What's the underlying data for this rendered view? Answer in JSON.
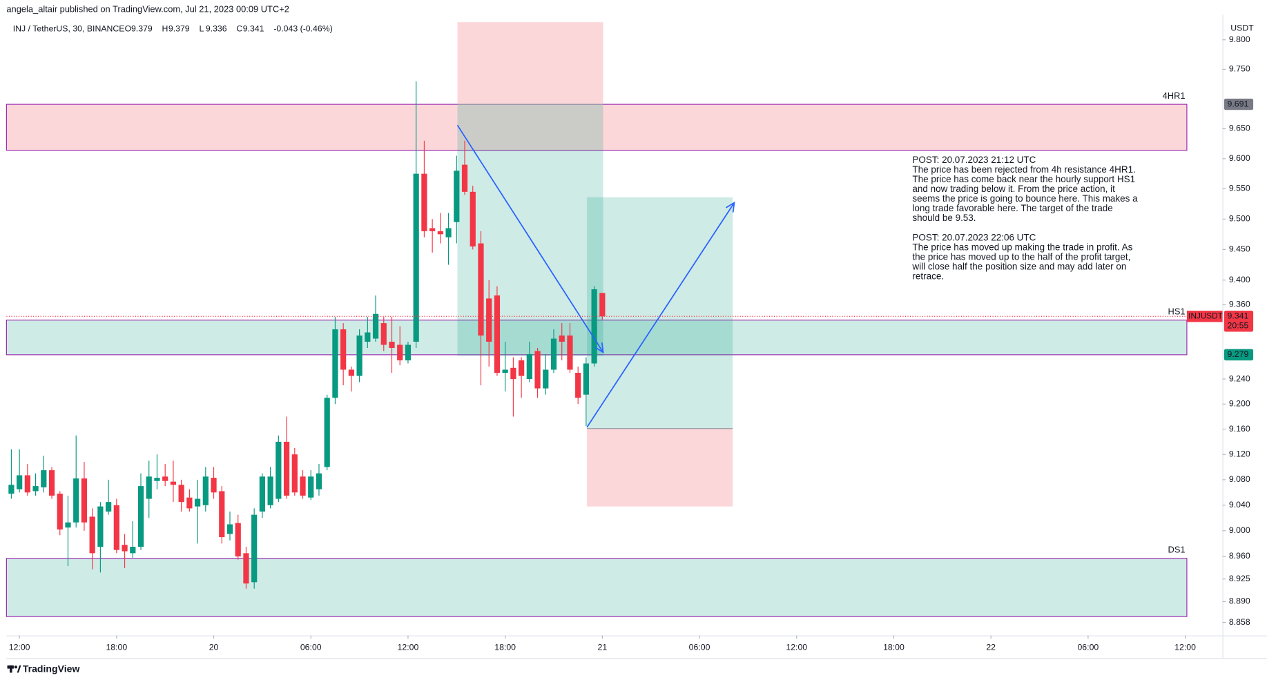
{
  "header": "angela_altair published on TradingView.com, Jul 21, 2023 00:09 UTC+2",
  "footer": "TradingView",
  "chart_data": {
    "type": "candlestick",
    "symbol": "INJ / TetherUS, 30, BINANCE",
    "ohlc_keys": [
      "O",
      "H",
      "L",
      "C"
    ],
    "change": "-0.043 (-0.46%)",
    "currency": "USDT",
    "last_price_symbol": "INJUSDT",
    "countdown": "20:55",
    "up_color": "#089981",
    "down_color": "#f23645",
    "log_scale": true,
    "grid": false,
    "x": [
      -1,
      0,
      1,
      2,
      3,
      4,
      5,
      6,
      7,
      8,
      9,
      10,
      11,
      12,
      13,
      14,
      15,
      16,
      17,
      18,
      19,
      20,
      21,
      22,
      23,
      24,
      25,
      26,
      27,
      28,
      29,
      30,
      31,
      32,
      33,
      34,
      35,
      36,
      37,
      38,
      39,
      40,
      41,
      42,
      43,
      44,
      45,
      46,
      47,
      48,
      49,
      50,
      51,
      52,
      53,
      54,
      55,
      56,
      57,
      58,
      59,
      60,
      61,
      62,
      63,
      64,
      65,
      66,
      67,
      68,
      69,
      70,
      71,
      72
    ],
    "open": [
      9.058,
      9.065,
      9.087,
      9.062,
      9.068,
      9.095,
      9.058,
      9.005,
      9.013,
      9.082,
      9.022,
      8.975,
      9.03,
      9.04,
      8.978,
      8.965,
      8.975,
      9.05,
      9.078,
      9.085,
      9.077,
      9.072,
      9.052,
      9.038,
      9.04,
      9.083,
      9.062,
      8.995,
      9.012,
      8.965,
      8.92,
      9.03,
      9.04,
      9.05,
      9.14,
      9.12,
      9.085,
      9.052,
      9.065,
      9.1,
      9.21,
      9.32,
      9.255,
      9.245,
      9.3,
      9.305,
      9.33,
      9.3,
      9.295,
      9.27,
      9.3,
      9.575,
      9.485,
      9.48,
      9.47,
      9.495,
      9.59,
      9.545,
      9.46,
      9.37,
      9.375,
      9.25,
      9.258,
      9.27,
      9.24,
      9.285,
      9.225,
      9.255,
      9.31,
      9.31,
      9.25,
      9.215,
      9.265,
      9.379
    ],
    "high": [
      9.128,
      9.128,
      9.105,
      9.09,
      9.118,
      9.1,
      9.062,
      9.055,
      9.15,
      9.108,
      9.035,
      9.045,
      9.08,
      9.05,
      8.995,
      9.015,
      9.09,
      9.11,
      9.12,
      9.105,
      9.11,
      9.08,
      9.065,
      9.08,
      9.1,
      9.1,
      9.07,
      9.03,
      9.025,
      8.975,
      9.035,
      9.09,
      9.1,
      9.15,
      9.18,
      9.13,
      9.095,
      9.095,
      9.105,
      9.215,
      9.34,
      9.33,
      9.26,
      9.32,
      9.34,
      9.375,
      9.34,
      9.34,
      9.325,
      9.3,
      9.73,
      9.63,
      9.5,
      9.51,
      9.51,
      9.605,
      9.63,
      9.555,
      9.48,
      9.4,
      9.39,
      9.3,
      9.275,
      9.275,
      9.3,
      9.29,
      9.28,
      9.32,
      9.33,
      9.33,
      9.26,
      9.275,
      9.39,
      9.379
    ],
    "low": [
      9.05,
      9.06,
      9.055,
      9.055,
      9.06,
      9.05,
      8.993,
      8.945,
      9.005,
      9.0,
      8.94,
      8.935,
      9.025,
      8.965,
      8.942,
      8.958,
      8.97,
      9.02,
      9.065,
      9.07,
      9.045,
      9.03,
      9.03,
      8.98,
      9.03,
      9.05,
      8.98,
      8.985,
      8.955,
      8.91,
      8.91,
      9.02,
      9.035,
      9.045,
      9.05,
      9.055,
      9.05,
      9.048,
      9.055,
      9.095,
      9.2,
      9.23,
      9.22,
      9.235,
      9.29,
      9.3,
      9.285,
      9.25,
      9.262,
      9.265,
      9.29,
      9.47,
      9.445,
      9.46,
      9.425,
      9.46,
      9.54,
      9.45,
      9.23,
      9.26,
      9.245,
      9.22,
      9.18,
      9.21,
      9.235,
      9.21,
      9.215,
      9.25,
      9.27,
      9.25,
      9.2,
      9.165,
      9.26,
      9.336
    ],
    "close": [
      9.072,
      9.087,
      9.06,
      9.07,
      9.095,
      9.055,
      9.002,
      9.013,
      9.082,
      9.013,
      8.965,
      9.038,
      9.045,
      8.97,
      8.968,
      8.975,
      9.07,
      9.085,
      9.083,
      9.078,
      9.072,
      9.045,
      9.035,
      9.05,
      9.085,
      9.06,
      8.99,
      9.01,
      8.96,
      8.918,
      9.025,
      9.085,
      9.085,
      9.14,
      9.055,
      9.06,
      9.055,
      9.085,
      9.09,
      9.21,
      9.32,
      9.255,
      9.245,
      9.31,
      9.315,
      9.345,
      9.295,
      9.29,
      9.27,
      9.295,
      9.575,
      9.48,
      9.48,
      9.475,
      9.485,
      9.58,
      9.545,
      9.455,
      9.31,
      9.3,
      9.25,
      9.255,
      9.24,
      9.245,
      9.28,
      9.225,
      9.255,
      9.305,
      9.3,
      9.255,
      9.21,
      9.265,
      9.385,
      9.341
    ],
    "xlim": [
      -1.6,
      148.6
    ],
    "xticks": [
      {
        "value": 0,
        "label": "12:00"
      },
      {
        "value": 12,
        "label": "18:00"
      },
      {
        "value": 24,
        "label": "20"
      },
      {
        "value": 36,
        "label": "06:00"
      },
      {
        "value": 48,
        "label": "12:00"
      },
      {
        "value": 60,
        "label": "18:00"
      },
      {
        "value": 72,
        "label": "21"
      },
      {
        "value": 84,
        "label": "06:00"
      },
      {
        "value": 96,
        "label": "12:00"
      },
      {
        "value": 108,
        "label": "18:00"
      },
      {
        "value": 120,
        "label": "22"
      },
      {
        "value": 132,
        "label": "06:00"
      },
      {
        "value": 144,
        "label": "12:00"
      }
    ],
    "ylim": [
      8.838,
      9.843
    ],
    "yticks": [
      {
        "value": 9.8,
        "label": "9.800"
      },
      {
        "value": 9.75,
        "label": "9.750"
      },
      {
        "value": 9.65,
        "label": "9.650"
      },
      {
        "value": 9.6,
        "label": "9.600"
      },
      {
        "value": 9.55,
        "label": "9.550"
      },
      {
        "value": 9.5,
        "label": "9.500"
      },
      {
        "value": 9.45,
        "label": "9.450"
      },
      {
        "value": 9.4,
        "label": "9.400"
      },
      {
        "value": 9.36,
        "label": "9.360"
      },
      {
        "value": 9.24,
        "label": "9.240"
      },
      {
        "value": 9.2,
        "label": "9.200"
      },
      {
        "value": 9.16,
        "label": "9.160"
      },
      {
        "value": 9.12,
        "label": "9.120"
      },
      {
        "value": 9.08,
        "label": "9.080"
      },
      {
        "value": 9.04,
        "label": "9.040"
      },
      {
        "value": 9.0,
        "label": "9.000"
      },
      {
        "value": 8.96,
        "label": "8.960"
      },
      8.925,
      {
        "value": 8.89,
        "label": "8.890"
      },
      8.858
    ],
    "zones": [
      {
        "label": "4HR1",
        "x": [
          -1.6,
          144.2
        ],
        "top": 9.691,
        "bottom": 9.614,
        "kind": "resistance"
      },
      {
        "label": "HS1",
        "x": [
          -1.6,
          144.2
        ],
        "top": 9.335,
        "bottom": 9.279,
        "kind": "support"
      },
      {
        "label": "DS1",
        "x": [
          -1.6,
          144.2
        ],
        "top": 8.957,
        "bottom": 8.867,
        "kind": "support"
      }
    ],
    "positions": [
      {
        "side": "short",
        "x": [
          54.1,
          72.1
        ],
        "stop": 9.83,
        "entry": 9.691,
        "target": 9.277
      },
      {
        "side": "long",
        "x": [
          70.1,
          88.1
        ],
        "stop": 9.038,
        "entry": 9.161,
        "target": 9.536
      }
    ],
    "arrows": [
      {
        "x": [
          54.1,
          72.1
        ],
        "y": [
          9.656,
          9.283
        ]
      },
      {
        "x": [
          70.1,
          88.3
        ],
        "y": [
          9.163,
          9.527
        ]
      }
    ],
    "notes": [
      [
        "POST: 20.07.2023 21:12 UTC",
        "The price has been rejected from 4h resistance 4HR1.",
        "The price has come back near the hourly support HS1",
        "and now trading below it. From the price action, it",
        "seems the price is going to bounce here. This makes a",
        "long trade favorable here. The target of the trade",
        "should be 9.53."
      ],
      [
        "POST: 20.07.2023 22:06 UTC",
        "The price has moved up making the trade in profit. As",
        "the price has moved up to the half of the profit target,",
        "will close half the position size and may add later on",
        "retrace."
      ]
    ]
  }
}
